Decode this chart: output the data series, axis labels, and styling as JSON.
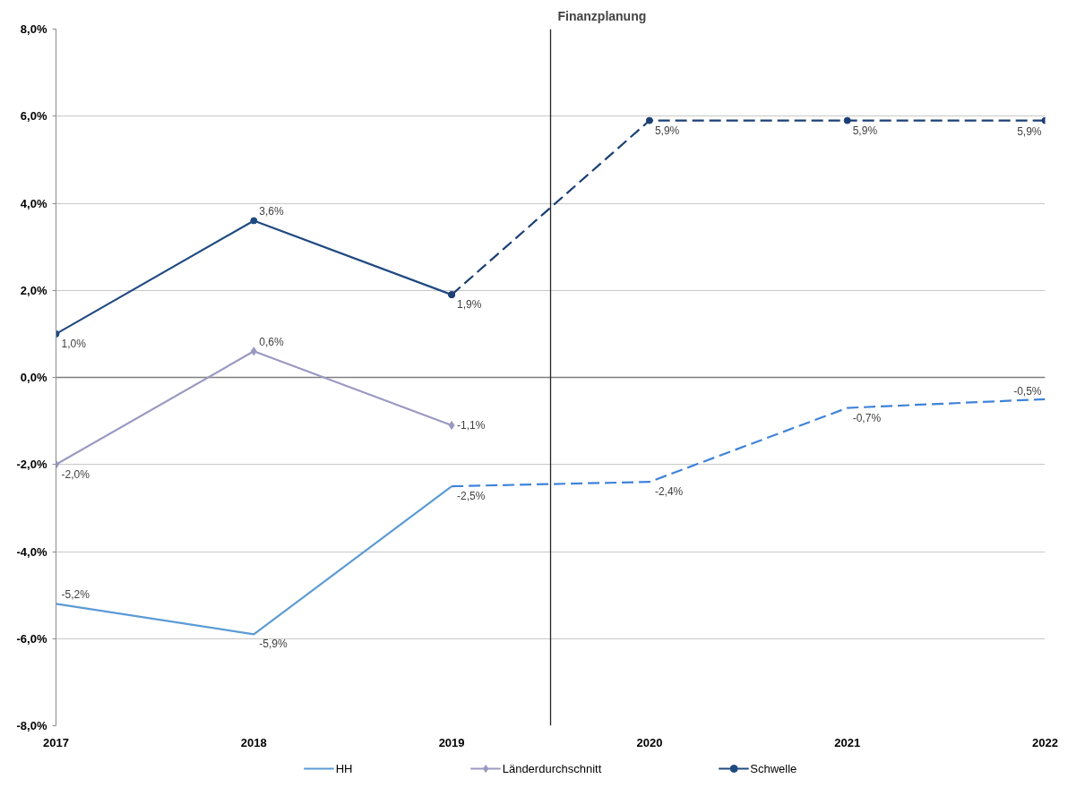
{
  "chart_data": {
    "type": "line",
    "xlim": [
      2017,
      2022
    ],
    "xticks": [
      2017,
      2018,
      2019,
      2020,
      2021,
      2022
    ],
    "ylim": [
      -8,
      8
    ],
    "yticks": [
      {
        "value": -8,
        "label": "-8,0%"
      },
      {
        "value": -6,
        "label": "-6,0%"
      },
      {
        "value": -4,
        "label": "-4,0%"
      },
      {
        "value": -2,
        "label": "-2,0%"
      },
      {
        "value": 0,
        "label": "0,0%"
      },
      {
        "value": 2,
        "label": "2,0%"
      },
      {
        "value": 4,
        "label": "4,0%"
      },
      {
        "value": 6,
        "label": "6,0%"
      },
      {
        "value": 8,
        "label": "8,0%"
      }
    ],
    "grid": "y",
    "legend": "bottom",
    "ref_lines": [
      {
        "axis": "x",
        "value": 2019.5,
        "label": "Finanzplanung",
        "color": "#262626"
      }
    ],
    "series": [
      {
        "name": "HH",
        "color": "#5b9bd5",
        "x": [
          2017,
          2018,
          2019
        ],
        "values": [
          -5.2,
          -5.9,
          -2.5
        ],
        "marker": "none",
        "line_style": "solid",
        "value_labels": [
          "-5,2%",
          "-5,9%",
          null
        ]
      },
      {
        "color": "#3f83d8",
        "x": [
          2019,
          2020,
          2021,
          2022
        ],
        "values": [
          -2.5,
          -2.4,
          -0.7,
          -0.5
        ],
        "marker": "none",
        "line_style": "dashed",
        "value_labels": [
          "-2,5%",
          "-2,4%",
          "-0,7%",
          "-0,5%"
        ]
      },
      {
        "name": "Länderdurchschnitt",
        "color": "#9a99c2",
        "x": [
          2017,
          2018,
          2019
        ],
        "values": [
          -2.0,
          0.6,
          -1.1
        ],
        "marker": "diamond",
        "line_style": "solid",
        "value_labels": [
          "-2,0%",
          "0,6%",
          "-1,1%"
        ]
      },
      {
        "name": "Schwelle",
        "color": "#1f4a80",
        "x": [
          2017,
          2018,
          2019
        ],
        "values": [
          1.0,
          3.6,
          1.9
        ],
        "marker": "circle",
        "line_style": "solid",
        "value_labels": [
          "1,0%",
          "3,6%",
          null
        ]
      },
      {
        "color": "#1c3f75",
        "x": [
          2019,
          2020,
          2021,
          2022
        ],
        "values": [
          1.9,
          5.9,
          5.9,
          5.9
        ],
        "marker": "circle",
        "line_style": "dashed",
        "value_labels": [
          "1,9%",
          "5,9%",
          "5,9%",
          "5,9%"
        ]
      }
    ]
  }
}
